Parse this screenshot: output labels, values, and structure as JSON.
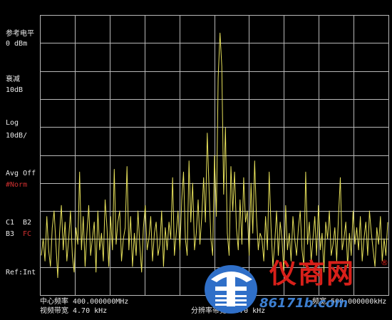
{
  "sidebar": {
    "ref_level_label": "参考电平",
    "ref_level_value": "0  dBm",
    "atten_label": "衰减",
    "atten_value": "10dB",
    "log_label": "Log",
    "log_value": "10dB/",
    "avg_label": "Avg Off",
    "norm_label": "#Norm",
    "c1_label": "C1",
    "b2_label": "B2",
    "b3_label": "B3",
    "fc_label": "FC",
    "ref_int_label": "Ref:Int"
  },
  "footer": {
    "center_freq": "中心频率 400.000000MHz",
    "vbw": "视频带宽 4.70  kHz",
    "rbw": "分辨率带宽 4.70  kHz",
    "span": "频宽 500.000000kHz"
  },
  "watermark": {
    "brand": "仪商网",
    "url": "86171b.com",
    "registered": "®"
  },
  "colors": {
    "trace": "#e6e05a",
    "grid": "#b8b8b8",
    "background": "#000000",
    "label_text": "#e8e8e8",
    "norm_text": "#d03030",
    "watermark_red": "#d8201a",
    "watermark_blue": "#2f6fc8"
  },
  "chart_data": {
    "type": "line",
    "title": "",
    "xlabel": "",
    "ylabel": "",
    "grid": true,
    "grid_divisions": {
      "x": 10,
      "y": 10
    },
    "ylim": [
      -100,
      0
    ],
    "xlim": [
      399.75,
      400.25
    ],
    "x_unit": "MHz",
    "y_unit": "dBm",
    "series": [
      {
        "values": [
          -86,
          -80,
          -88,
          -72,
          -84,
          -90,
          -76,
          -70,
          -82,
          -94,
          -78,
          -68,
          -84,
          -74,
          -88,
          -80,
          -70,
          -86,
          -92,
          -76,
          -82,
          -56,
          -84,
          -72,
          -90,
          -78,
          -68,
          -86,
          -80,
          -74,
          -92,
          -70,
          -84,
          -78,
          -88,
          -66,
          -76,
          -90,
          -72,
          -84,
          -55,
          -82,
          -74,
          -70,
          -88,
          -80,
          -76,
          -54,
          -84,
          -72,
          -90,
          -78,
          -86,
          -70,
          -82,
          -92,
          -76,
          -68,
          -84,
          -80,
          -72,
          -88,
          -78,
          -74,
          -86,
          -82,
          -70,
          -90,
          -76,
          -84,
          -74,
          -80,
          -58,
          -86,
          -78,
          -70,
          -84,
          -66,
          -56,
          -80,
          -86,
          -52,
          -74,
          -60,
          -84,
          -78,
          -66,
          -82,
          -72,
          -58,
          -74,
          -42,
          -62,
          -80,
          -86,
          -50,
          -72,
          -22,
          -6,
          -18,
          -64,
          -40,
          -78,
          -86,
          -54,
          -70,
          -56,
          -76,
          -84,
          -66,
          -82,
          -58,
          -74,
          -70,
          -86,
          -60,
          -78,
          -52,
          -72,
          -84,
          -78,
          -80,
          -88,
          -72,
          -84,
          -56,
          -76,
          -90,
          -82,
          -70,
          -86,
          -74,
          -80,
          -92,
          -68,
          -84,
          -78,
          -88,
          -72,
          -80,
          -86,
          -76,
          -70,
          -84,
          -90,
          -56,
          -82,
          -74,
          -88,
          -80,
          -72,
          -86,
          -68,
          -84,
          -78,
          -92,
          -74,
          -80,
          -70,
          -86,
          -82,
          -76,
          -88,
          -72,
          -58,
          -84,
          -80,
          -74,
          -90,
          -78,
          -86,
          -70,
          -82,
          -76,
          -84,
          -72,
          -88,
          -80,
          -74,
          -86,
          -70,
          -78,
          -84,
          -90,
          -76,
          -82,
          -72,
          -88,
          -80,
          -86,
          -74
        ]
      }
    ]
  }
}
